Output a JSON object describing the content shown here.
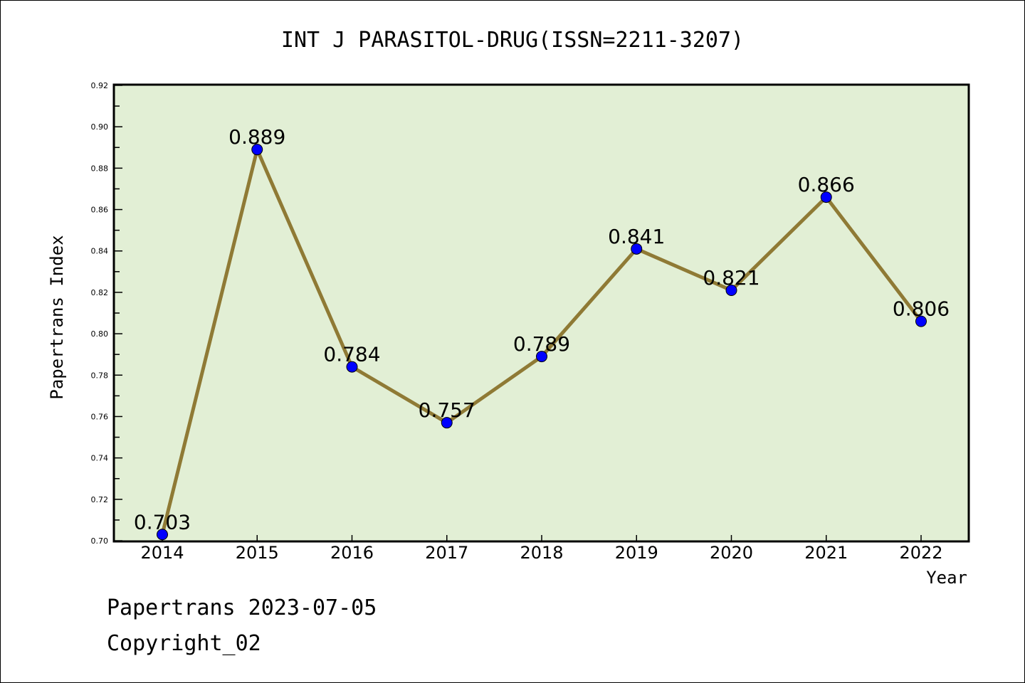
{
  "chart_data": {
    "type": "line",
    "title": "INT J PARASITOL-DRUG(ISSN=2211-3207)",
    "xlabel": "Year",
    "ylabel": "Papertrans Index",
    "categories": [
      "2014",
      "2015",
      "2016",
      "2017",
      "2018",
      "2019",
      "2020",
      "2021",
      "2022"
    ],
    "values": [
      0.703,
      0.889,
      0.784,
      0.757,
      0.789,
      0.841,
      0.821,
      0.866,
      0.806
    ],
    "data_labels": [
      "0.703",
      "0.889",
      "0.784",
      "0.757",
      "0.789",
      "0.841",
      "0.821",
      "0.866",
      "0.806"
    ],
    "ylim": [
      0.7,
      0.92
    ],
    "yticks": [
      "0.70",
      "0.72",
      "0.74",
      "0.76",
      "0.78",
      "0.80",
      "0.82",
      "0.84",
      "0.86",
      "0.88",
      "0.90",
      "0.92"
    ],
    "grid": false,
    "colors": {
      "plot_bg": "#e2efd5",
      "line": "#8f7a35",
      "marker": "#0000ff"
    }
  },
  "footer": {
    "line1": "Papertrans 2023-07-05",
    "line2": "Copyright_02"
  }
}
